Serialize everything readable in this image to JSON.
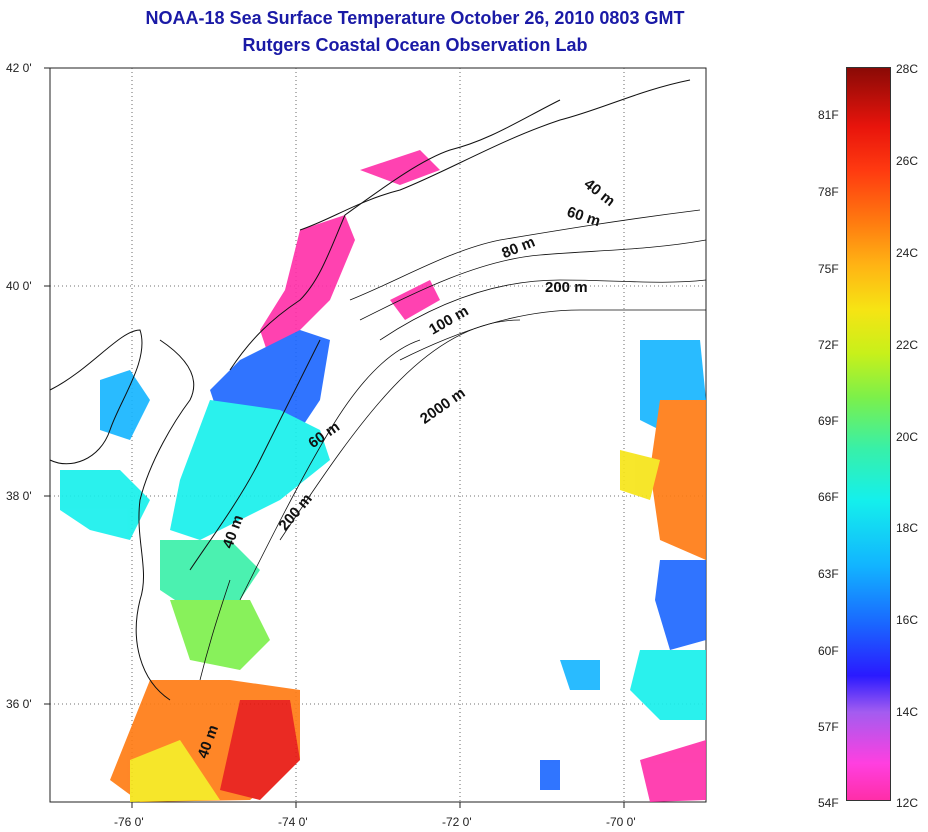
{
  "title": "NOAA-18 Sea Surface Temperature October 26, 2010 0803 GMT",
  "subtitle": "Rutgers Coastal Ocean Observation Lab",
  "axes": {
    "lat_ticks": [
      "42 0'",
      "40 0'",
      "38 0'",
      "36 0'"
    ],
    "lon_ticks": [
      "-76 0'",
      "-74 0'",
      "-72 0'",
      "-70 0'"
    ]
  },
  "depth_contours": [
    "40 m",
    "60 m",
    "80 m",
    "200 m",
    "100 m",
    "2000 m",
    "60 m",
    "200 m",
    "40 m",
    "40 m"
  ],
  "colorbar": {
    "fahrenheit": [
      "81F",
      "78F",
      "75F",
      "72F",
      "69F",
      "66F",
      "63F",
      "60F",
      "57F",
      "54F"
    ],
    "celsius": [
      "28C",
      "26C",
      "24C",
      "22C",
      "20C",
      "18C",
      "16C",
      "14C",
      "12C"
    ],
    "colors": [
      "#ff2ea8",
      "#a35cf0",
      "#2a1aff",
      "#12b4ff",
      "#14f0ec",
      "#7cf04a",
      "#f6e414",
      "#ff7a10",
      "#e8140c",
      "#8a0a06"
    ]
  }
}
